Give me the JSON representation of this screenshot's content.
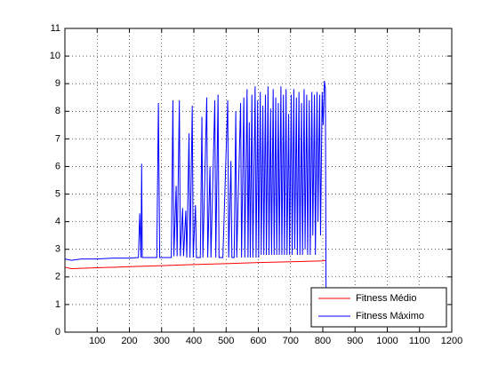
{
  "chart_data": {
    "type": "line",
    "xlim": [
      0,
      1200
    ],
    "xticks": [
      100,
      200,
      300,
      400,
      500,
      600,
      700,
      800,
      900,
      1000,
      1100,
      1200
    ],
    "ylim": [
      0,
      11
    ],
    "yticks": [
      0,
      1,
      2,
      3,
      4,
      5,
      6,
      7,
      8,
      9,
      10,
      11
    ],
    "grid": true,
    "legend": "lower right",
    "series": [
      {
        "name": "Fitness Médio",
        "color": "#ff0000",
        "x": [
          0,
          20,
          100,
          200,
          300,
          400,
          500,
          600,
          700,
          800,
          810
        ],
        "values": [
          2.35,
          2.3,
          2.33,
          2.37,
          2.41,
          2.45,
          2.48,
          2.52,
          2.55,
          2.58,
          2.6
        ]
      },
      {
        "name": "Fitness Máximo",
        "color": "#0000ff",
        "x": [
          0,
          20,
          50,
          100,
          150,
          200,
          228,
          232,
          236,
          238,
          240,
          285,
          290,
          294,
          330,
          335,
          338,
          345,
          348,
          355,
          358,
          365,
          368,
          375,
          378,
          385,
          388,
          395,
          398,
          405,
          408,
          420,
          425,
          428,
          440,
          443,
          450,
          453,
          465,
          468,
          475,
          478,
          490,
          505,
          508,
          515,
          518,
          525,
          530,
          533,
          545,
          548,
          555,
          558,
          565,
          568,
          572,
          575,
          580,
          583,
          590,
          593,
          598,
          601,
          606,
          609,
          614,
          617,
          622,
          625,
          630,
          633,
          638,
          641,
          646,
          649,
          654,
          657,
          662,
          665,
          670,
          673,
          678,
          681,
          686,
          689,
          694,
          697,
          702,
          705,
          710,
          713,
          718,
          721,
          726,
          729,
          734,
          737,
          742,
          745,
          750,
          753,
          758,
          761,
          766,
          769,
          774,
          777,
          782,
          785,
          790,
          793,
          798,
          801,
          805,
          808,
          810
        ],
        "values": [
          2.65,
          2.6,
          2.65,
          2.65,
          2.68,
          2.68,
          2.7,
          4.3,
          2.7,
          6.1,
          2.7,
          2.7,
          8.3,
          2.7,
          2.7,
          8.4,
          2.75,
          5.3,
          2.75,
          8.4,
          2.75,
          4.5,
          2.75,
          4.4,
          2.7,
          7.2,
          2.7,
          8.2,
          2.7,
          4.6,
          2.7,
          2.7,
          7.8,
          2.7,
          8.5,
          2.7,
          6.0,
          2.7,
          8.4,
          2.7,
          8.6,
          2.7,
          2.7,
          8.4,
          2.7,
          6.2,
          2.7,
          2.7,
          8.0,
          2.7,
          8.3,
          2.7,
          8.5,
          2.7,
          8.8,
          2.7,
          7.6,
          2.7,
          8.6,
          2.7,
          8.9,
          2.7,
          8.4,
          2.7,
          8.7,
          2.8,
          8.2,
          2.8,
          8.6,
          2.8,
          8.9,
          2.8,
          8.1,
          2.8,
          8.8,
          2.8,
          8.5,
          2.8,
          8.3,
          2.8,
          8.9,
          2.8,
          8.6,
          2.8,
          8.8,
          2.8,
          7.9,
          2.8,
          8.6,
          2.8,
          8.8,
          3.0,
          8.5,
          2.8,
          8.7,
          2.8,
          8.3,
          2.8,
          8.8,
          3.0,
          8.6,
          2.8,
          8.4,
          2.8,
          8.7,
          3.5,
          8.6,
          2.8,
          8.7,
          4.0,
          8.6,
          3.5,
          8.7,
          7.5,
          9.1,
          8.8,
          1.4
        ]
      }
    ]
  }
}
